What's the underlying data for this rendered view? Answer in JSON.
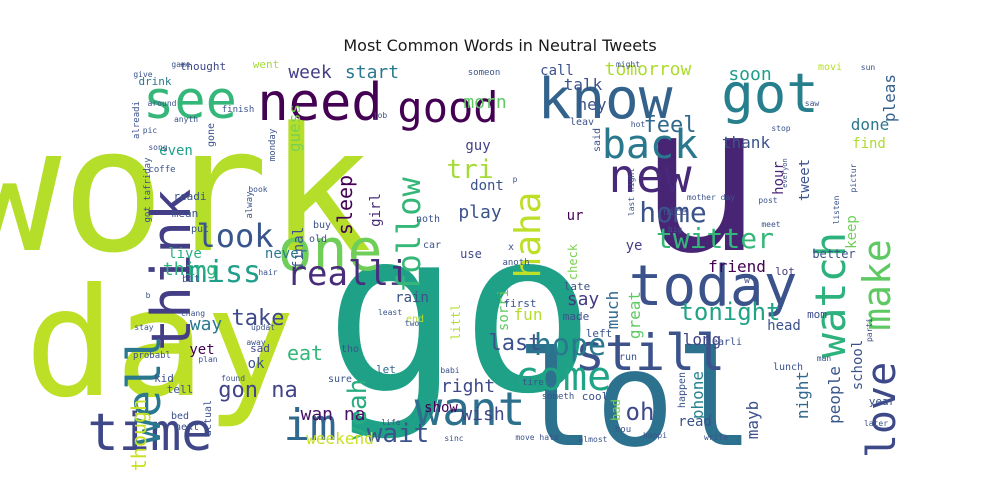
{
  "chart_data": {
    "type": "wordcloud",
    "title": "Most Common Words in Neutral Tweets",
    "words": [
      {
        "text": "work",
        "weight": 100,
        "color": "#b5de2b"
      },
      {
        "text": "go",
        "weight": 98,
        "color": "#1fa187"
      },
      {
        "text": "day",
        "weight": 84,
        "color": "#bddf26"
      },
      {
        "text": "u",
        "weight": 80,
        "color": "#482475"
      },
      {
        "text": "lol",
        "weight": 72,
        "color": "#2c728e"
      },
      {
        "text": "time",
        "weight": 46,
        "color": "#3f4788"
      },
      {
        "text": "know",
        "weight": 44,
        "color": "#33638d"
      },
      {
        "text": "one",
        "weight": 42,
        "color": "#6ece58"
      },
      {
        "text": "need",
        "weight": 40,
        "color": "#440154"
      },
      {
        "text": "think",
        "weight": 40,
        "color": "#433e85"
      },
      {
        "text": "got",
        "weight": 38,
        "color": "#277f8e"
      },
      {
        "text": "today",
        "weight": 38,
        "color": "#3b528b"
      },
      {
        "text": "want",
        "weight": 36,
        "color": "#2d708e"
      },
      {
        "text": "see",
        "weight": 34,
        "color": "#35b779"
      },
      {
        "text": "well",
        "weight": 33,
        "color": "#2a788e"
      },
      {
        "text": "still",
        "weight": 32,
        "color": "#3b528b"
      },
      {
        "text": "new",
        "weight": 31,
        "color": "#482878"
      },
      {
        "text": "back",
        "weight": 30,
        "color": "#2a788e"
      },
      {
        "text": "im",
        "weight": 30,
        "color": "#31688e"
      },
      {
        "text": "good",
        "weight": 28,
        "color": "#440154"
      },
      {
        "text": "love",
        "weight": 28,
        "color": "#3e4989"
      },
      {
        "text": "watch",
        "weight": 27,
        "color": "#2db27d"
      },
      {
        "text": "haha",
        "weight": 27,
        "color": "#bddf26"
      },
      {
        "text": "come",
        "weight": 27,
        "color": "#20a486"
      },
      {
        "text": "make",
        "weight": 25,
        "color": "#5ec962"
      },
      {
        "text": "look",
        "weight": 24,
        "color": "#39568c"
      },
      {
        "text": "realli",
        "weight": 23,
        "color": "#472d7b"
      },
      {
        "text": "miss",
        "weight": 22,
        "color": "#1f9e89"
      },
      {
        "text": "follow",
        "weight": 21,
        "color": "#35b779"
      },
      {
        "text": "hope",
        "weight": 20,
        "color": "#2a788e"
      },
      {
        "text": "twitter",
        "weight": 20,
        "color": "#35b779"
      },
      {
        "text": "home",
        "weight": 19,
        "color": "#3b528b"
      },
      {
        "text": "yeah",
        "weight": 19,
        "color": "#27ad81"
      },
      {
        "text": "tri",
        "weight": 18,
        "color": "#a5db36"
      },
      {
        "text": "wait",
        "weight": 18,
        "color": "#3b528b"
      },
      {
        "text": "oh",
        "weight": 17,
        "color": "#3e4989"
      },
      {
        "text": "tonight",
        "weight": 16,
        "color": "#20a386"
      },
      {
        "text": "feel",
        "weight": 16,
        "color": "#31688e"
      },
      {
        "text": "gon na",
        "weight": 16,
        "color": "#414487"
      },
      {
        "text": "though",
        "weight": 15,
        "color": "#c8e020"
      },
      {
        "text": "sleep",
        "weight": 15,
        "color": "#440154"
      },
      {
        "text": "take",
        "weight": 15,
        "color": "#3e4989"
      },
      {
        "text": "last",
        "weight": 15,
        "color": "#3b528b"
      },
      {
        "text": "tomorrow",
        "weight": 14,
        "color": "#addc30"
      },
      {
        "text": "week",
        "weight": 14,
        "color": "#433e85"
      },
      {
        "text": "start",
        "weight": 14,
        "color": "#2a788e"
      },
      {
        "text": "morn",
        "weight": 14,
        "color": "#5ec962"
      },
      {
        "text": "soon",
        "weight": 14,
        "color": "#1f9e89"
      },
      {
        "text": "guess",
        "weight": 13,
        "color": "#7ad151"
      },
      {
        "text": "thing",
        "weight": 13,
        "color": "#2db27d"
      },
      {
        "text": "wan na",
        "weight": 13,
        "color": "#471063"
      },
      {
        "text": "play",
        "weight": 13,
        "color": "#3b528b"
      },
      {
        "text": "eat",
        "weight": 13,
        "color": "#35b779"
      },
      {
        "text": "wish",
        "weight": 13,
        "color": "#414487"
      },
      {
        "text": "right",
        "weight": 13,
        "color": "#3e4989"
      },
      {
        "text": "phone",
        "weight": 12,
        "color": "#25838e"
      },
      {
        "text": "way",
        "weight": 12,
        "color": "#2a788e"
      },
      {
        "text": "people",
        "weight": 12,
        "color": "#39568c"
      },
      {
        "text": "mayb",
        "weight": 12,
        "color": "#3b528b"
      },
      {
        "text": "weekend",
        "weight": 12,
        "color": "#c8e020"
      },
      {
        "text": "fun",
        "weight": 12,
        "color": "#b5de2b"
      },
      {
        "text": "say",
        "weight": 12,
        "color": "#443a83"
      },
      {
        "text": "night",
        "weight": 12,
        "color": "#31688e"
      },
      {
        "text": "much",
        "weight": 11,
        "color": "#31688e"
      },
      {
        "text": "talk",
        "weight": 11,
        "color": "#3b528b"
      },
      {
        "text": "done",
        "weight": 11,
        "color": "#2a788e"
      },
      {
        "text": "pleas",
        "weight": 11,
        "color": "#355f8d"
      },
      {
        "text": "great",
        "weight": 11,
        "color": "#5ec962"
      },
      {
        "text": "dont",
        "weight": 11,
        "color": "#3b528b"
      },
      {
        "text": "hey",
        "weight": 11,
        "color": "#3b528b"
      },
      {
        "text": "friend",
        "weight": 11,
        "color": "#440154"
      },
      {
        "text": "long",
        "weight": 11,
        "color": "#414487"
      },
      {
        "text": "thank",
        "weight": 11,
        "color": "#3b528b"
      },
      {
        "text": "final",
        "weight": 10,
        "color": "#3b528b"
      },
      {
        "text": "sorri",
        "weight": 10,
        "color": "#5ec962"
      },
      {
        "text": "girl",
        "weight": 10,
        "color": "#472d7b"
      },
      {
        "text": "guy",
        "weight": 10,
        "color": "#433e85"
      },
      {
        "text": "school",
        "weight": 10,
        "color": "#3b528b"
      },
      {
        "text": "tweet",
        "weight": 10,
        "color": "#3b528b"
      },
      {
        "text": "keep",
        "weight": 10,
        "color": "#6ece58"
      },
      {
        "text": "live",
        "weight": 10,
        "color": "#27ad81"
      },
      {
        "text": "never",
        "weight": 10,
        "color": "#2a788e"
      },
      {
        "text": "even",
        "weight": 10,
        "color": "#1f9e89"
      },
      {
        "text": "yet",
        "weight": 10,
        "color": "#440154"
      },
      {
        "text": "show",
        "weight": 10,
        "color": "#440154"
      },
      {
        "text": "call",
        "weight": 10,
        "color": "#3b528b"
      },
      {
        "text": "hour",
        "weight": 10,
        "color": "#482878"
      },
      {
        "text": "find",
        "weight": 10,
        "color": "#addc30"
      },
      {
        "text": "ok",
        "weight": 10,
        "color": "#3b528b"
      },
      {
        "text": "rain",
        "weight": 9,
        "color": "#3b528b"
      },
      {
        "text": "ur",
        "weight": 9,
        "color": "#440154"
      },
      {
        "text": "head",
        "weight": 9,
        "color": "#3b528b"
      },
      {
        "text": "read",
        "weight": 9,
        "color": "#3b528b"
      },
      {
        "text": "littl",
        "weight": 9,
        "color": "#b5de2b"
      },
      {
        "text": "use",
        "weight": 9,
        "color": "#3e4989"
      },
      {
        "text": "ye",
        "weight": 9,
        "color": "#433e85"
      },
      {
        "text": "bad",
        "weight": 8,
        "color": "#7ad151"
      },
      {
        "text": "check",
        "weight": 8,
        "color": "#7ad151"
      },
      {
        "text": "better",
        "weight": 7,
        "color": "#3b528b"
      },
      {
        "text": "mom",
        "weight": 7,
        "color": "#3e4989"
      },
      {
        "text": "lot",
        "weight": 7,
        "color": "#433e85"
      },
      {
        "text": "sad",
        "weight": 7,
        "color": "#3e4989"
      },
      {
        "text": "tell",
        "weight": 7,
        "color": "#3b528b"
      },
      {
        "text": "kid",
        "weight": 7,
        "color": "#3b528b"
      },
      {
        "text": "drink",
        "weight": 7,
        "color": "#2a788e"
      },
      {
        "text": "thought",
        "weight": 7,
        "color": "#3e4989"
      },
      {
        "text": "readi",
        "weight": 7,
        "color": "#3b528b"
      },
      {
        "text": "mean",
        "weight": 7,
        "color": "#3b528b"
      },
      {
        "text": "let",
        "weight": 7,
        "color": "#31688e"
      },
      {
        "text": "made",
        "weight": 7,
        "color": "#3b528b"
      },
      {
        "text": "first",
        "weight": 7,
        "color": "#3b528b"
      },
      {
        "text": "left",
        "weight": 7,
        "color": "#3b528b"
      },
      {
        "text": "cool",
        "weight": 7,
        "color": "#3b528b"
      },
      {
        "text": "lunch",
        "weight": 7,
        "color": "#3b528b"
      },
      {
        "text": "year",
        "weight": 7,
        "color": "#3b528b"
      },
      {
        "text": "late",
        "weight": 7,
        "color": "#3b528b"
      },
      {
        "text": "said",
        "weight": 7,
        "color": "#3b528b"
      },
      {
        "text": "nice",
        "weight": 6,
        "color": "#3b528b"
      },
      {
        "text": "went",
        "weight": 6,
        "color": "#a5db36"
      },
      {
        "text": "gone",
        "weight": 6,
        "color": "#3b528b"
      },
      {
        "text": "put",
        "weight": 6,
        "color": "#3b528b"
      },
      {
        "text": "bit",
        "weight": 6,
        "color": "#3b528b"
      },
      {
        "text": "old",
        "weight": 6,
        "color": "#3b528b"
      },
      {
        "text": "buy",
        "weight": 6,
        "color": "#3b528b"
      },
      {
        "text": "tho",
        "weight": 6,
        "color": "#3b528b"
      },
      {
        "text": "sure",
        "weight": 6,
        "color": "#3b528b"
      },
      {
        "text": "end",
        "weight": 6,
        "color": "#b5de2b"
      },
      {
        "text": "noth",
        "weight": 6,
        "color": "#3b528b"
      },
      {
        "text": "car",
        "weight": 6,
        "color": "#3b528b"
      },
      {
        "text": "movi",
        "weight": 6,
        "color": "#b5de2b"
      },
      {
        "text": "leav",
        "weight": 6,
        "color": "#3b528b"
      },
      {
        "text": "run",
        "weight": 6,
        "color": "#3b528b"
      },
      {
        "text": "happen",
        "weight": 6,
        "color": "#3b528b"
      },
      {
        "text": "earli",
        "weight": 6,
        "color": "#3b528b"
      },
      {
        "text": "next",
        "weight": 6,
        "color": "#3b528b"
      },
      {
        "text": "bed",
        "weight": 6,
        "color": "#3b528b"
      },
      {
        "text": "actual",
        "weight": 6,
        "color": "#3b528b"
      },
      {
        "text": "monday",
        "weight": 5,
        "color": "#3b528b"
      },
      {
        "text": "finish",
        "weight": 5,
        "color": "#3b528b"
      },
      {
        "text": "alway",
        "weight": 5,
        "color": "#3b528b"
      },
      {
        "text": "coffe",
        "weight": 5,
        "color": "#3b528b"
      },
      {
        "text": "got tafriday",
        "weight": 5,
        "color": "#3b528b"
      },
      {
        "text": "probabl",
        "weight": 5,
        "color": "#3b528b"
      },
      {
        "text": "alreadi",
        "weight": 5,
        "color": "#3b528b"
      },
      {
        "text": "anyth",
        "weight": 5,
        "color": "#3b528b"
      },
      {
        "text": "around",
        "weight": 5,
        "color": "#3b528b"
      },
      {
        "text": "give",
        "weight": 5,
        "color": "#3b528b"
      },
      {
        "text": "game",
        "weight": 5,
        "color": "#3b528b"
      },
      {
        "text": "pic",
        "weight": 5,
        "color": "#3b528b"
      },
      {
        "text": "job",
        "weight": 5,
        "color": "#3b528b"
      },
      {
        "text": "book",
        "weight": 5,
        "color": "#3b528b"
      },
      {
        "text": "someon",
        "weight": 5,
        "color": "#3b528b"
      },
      {
        "text": "might",
        "weight": 5,
        "color": "#3b528b"
      },
      {
        "text": "hot",
        "weight": 5,
        "color": "#3b528b"
      },
      {
        "text": "sun",
        "weight": 5,
        "color": "#3b528b"
      },
      {
        "text": "stop",
        "weight": 5,
        "color": "#3b528b"
      },
      {
        "text": "saw",
        "weight": 5,
        "color": "#3b528b"
      },
      {
        "text": "pictur",
        "weight": 5,
        "color": "#3b528b"
      },
      {
        "text": "listen",
        "weight": 5,
        "color": "#3b528b"
      },
      {
        "text": "post",
        "weight": 5,
        "color": "#3b528b"
      },
      {
        "text": "mother day",
        "weight": 5,
        "color": "#3b528b"
      },
      {
        "text": "last night",
        "weight": 5,
        "color": "#3b528b"
      },
      {
        "text": "big",
        "weight": 5,
        "color": "#3b528b"
      },
      {
        "text": "meet",
        "weight": 5,
        "color": "#3b528b"
      },
      {
        "text": "x",
        "weight": 5,
        "color": "#3b528b"
      },
      {
        "text": "anoth",
        "weight": 5,
        "color": "#3b528b"
      },
      {
        "text": "close",
        "weight": 5,
        "color": "#3b528b"
      },
      {
        "text": "w",
        "weight": 5,
        "color": "#3b528b"
      },
      {
        "text": "parti",
        "weight": 5,
        "color": "#3b528b"
      },
      {
        "text": "stay",
        "weight": 5,
        "color": "#3b528b"
      },
      {
        "text": "hair",
        "weight": 5,
        "color": "#3b528b"
      },
      {
        "text": "plan",
        "weight": 5,
        "color": "#3b528b"
      },
      {
        "text": "away",
        "weight": 5,
        "color": "#3b528b"
      },
      {
        "text": "updat",
        "weight": 5,
        "color": "#3b528b"
      },
      {
        "text": "chang",
        "weight": 5,
        "color": "#3b528b"
      },
      {
        "text": "found",
        "weight": 5,
        "color": "#3b528b"
      },
      {
        "text": "babi",
        "weight": 5,
        "color": "#3b528b"
      },
      {
        "text": "least",
        "weight": 5,
        "color": "#3b528b"
      },
      {
        "text": "two",
        "weight": 5,
        "color": "#3b528b"
      },
      {
        "text": "tire",
        "weight": 5,
        "color": "#3b528b"
      },
      {
        "text": "someth",
        "weight": 5,
        "color": "#3b528b"
      },
      {
        "text": "life",
        "weight": 5,
        "color": "#3b528b"
      },
      {
        "text": "sinc",
        "weight": 5,
        "color": "#3b528b"
      },
      {
        "text": "move hate",
        "weight": 5,
        "color": "#3b528b"
      },
      {
        "text": "almost",
        "weight": 5,
        "color": "#3b528b"
      },
      {
        "text": "hou",
        "weight": 5,
        "color": "#3b528b"
      },
      {
        "text": "happi",
        "weight": 5,
        "color": "#3b528b"
      },
      {
        "text": "write",
        "weight": 5,
        "color": "#3b528b"
      },
      {
        "text": "man",
        "weight": 5,
        "color": "#3b528b"
      },
      {
        "text": "later",
        "weight": 5,
        "color": "#3b528b"
      },
      {
        "text": "way2",
        "weight": 5,
        "color": "#3b528b"
      },
      {
        "text": "everyon",
        "weight": 5,
        "color": "#3b528b"
      },
      {
        "text": "song",
        "weight": 5,
        "color": "#3b528b"
      },
      {
        "text": "p",
        "weight": 5,
        "color": "#3b528b"
      },
      {
        "text": "b",
        "weight": 5,
        "color": "#3b528b"
      }
    ]
  }
}
